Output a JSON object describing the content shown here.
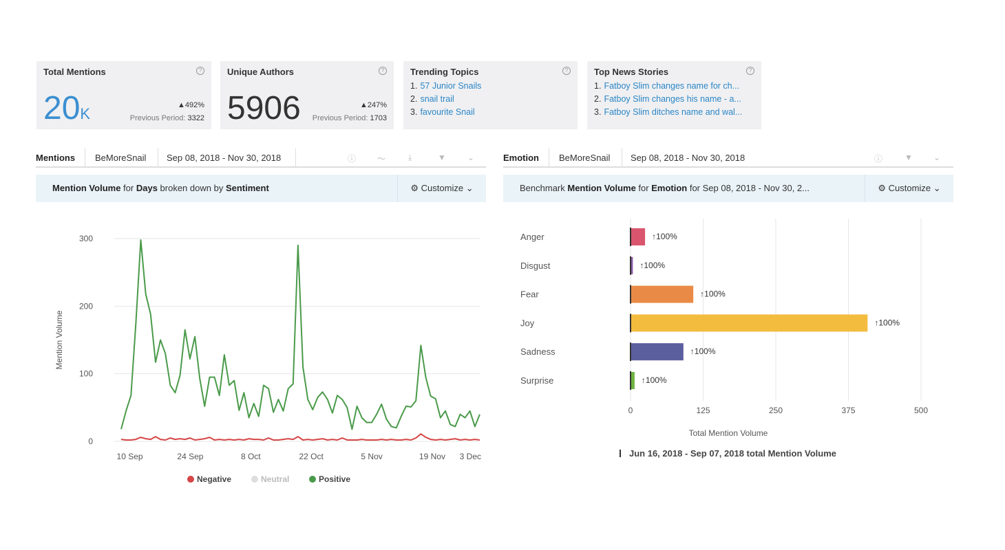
{
  "cards": {
    "total_mentions": {
      "title": "Total Mentions",
      "value": "20",
      "unit": "K",
      "delta": "492%",
      "prev_label": "Previous Period:",
      "prev_value": "3322"
    },
    "unique_authors": {
      "title": "Unique Authors",
      "value": "5906",
      "delta": "247%",
      "prev_label": "Previous Period:",
      "prev_value": "1703"
    },
    "trending_topics": {
      "title": "Trending Topics",
      "items": [
        "57 Junior Snails",
        "snail trail",
        "favourite Snail"
      ]
    },
    "top_news": {
      "title": "Top News Stories",
      "items": [
        "Fatboy Slim changes name for ch...",
        "Fatboy Slim changes his name - a...",
        "Fatboy Slim ditches name and wal..."
      ]
    }
  },
  "left_panel": {
    "tabs": [
      "Mentions",
      "BeMoreSnail",
      "Sep 08, 2018 - Nov 30, 2018"
    ],
    "subtitle": {
      "p1": "Mention Volume",
      "p2": " for ",
      "p3": "Days",
      "p4": " broken down by ",
      "p5": "Sentiment"
    },
    "customize": "Customize"
  },
  "right_panel": {
    "tabs": [
      "Emotion",
      "BeMoreSnail",
      "Sep 08, 2018 - Nov 30, 2018"
    ],
    "subtitle": {
      "p1": "Benchmark ",
      "p2": "Mention Volume",
      "p3": " for ",
      "p4": "Emotion",
      "p5": " for Sep 08, 2018 - Nov 30, 2..."
    },
    "customize": "Customize",
    "footnote": "Jun 16, 2018 - Sep 07, 2018 total Mention Volume"
  },
  "chart_data": [
    {
      "type": "line",
      "ylabel": "Mention Volume",
      "ylim": [
        0,
        300
      ],
      "yticks": [
        0,
        100,
        200,
        300
      ],
      "xticks": [
        "10 Sep",
        "24 Sep",
        "8 Oct",
        "22 Oct",
        "5 Nov",
        "19 Nov",
        "3 Dec"
      ],
      "x_start": "2018-09-08",
      "x_end": "2018-11-30",
      "legend": [
        "Negative",
        "Neutral",
        "Positive"
      ],
      "series": [
        {
          "name": "Positive",
          "color": "#4a9a4a",
          "values": [
            18,
            45,
            68,
            175,
            298,
            218,
            188,
            117,
            150,
            130,
            83,
            72,
            98,
            165,
            122,
            155,
            93,
            52,
            95,
            95,
            68,
            128,
            83,
            90,
            46,
            72,
            35,
            56,
            37,
            83,
            78,
            43,
            62,
            45,
            78,
            85,
            290,
            110,
            62,
            47,
            65,
            73,
            62,
            42,
            68,
            62,
            50,
            18,
            52,
            35,
            28,
            28,
            40,
            55,
            33,
            22,
            20,
            37,
            52,
            51,
            60,
            142,
            95,
            67,
            63,
            35,
            45,
            25,
            22,
            40,
            35,
            45,
            22,
            40
          ]
        },
        {
          "name": "Negative",
          "color": "#d64545",
          "values": [
            3,
            2,
            2,
            3,
            6,
            4,
            3,
            7,
            3,
            2,
            5,
            3,
            4,
            3,
            5,
            2,
            3,
            4,
            6,
            2,
            3,
            2,
            3,
            2,
            3,
            2,
            4,
            3,
            3,
            2,
            5,
            2,
            2,
            3,
            4,
            3,
            7,
            2,
            3,
            2,
            3,
            4,
            2,
            3,
            2,
            5,
            2,
            2,
            2,
            3,
            2,
            2,
            2,
            3,
            2,
            3,
            2,
            2,
            3,
            2,
            5,
            11,
            6,
            3,
            2,
            3,
            2,
            3,
            4,
            2,
            3,
            2,
            3,
            2
          ]
        }
      ]
    },
    {
      "type": "bar",
      "orientation": "horizontal",
      "xlabel": "Total Mention Volume",
      "xlim": [
        0,
        500
      ],
      "xticks": [
        0,
        125,
        250,
        375,
        500
      ],
      "categories": [
        "Anger",
        "Disgust",
        "Fear",
        "Joy",
        "Sadness",
        "Surprise"
      ],
      "values": [
        25,
        4,
        108,
        408,
        91,
        7
      ],
      "colors": [
        "#d9566e",
        "#8a5ba6",
        "#e98b46",
        "#f3bc3e",
        "#5b5f9e",
        "#6db33f"
      ],
      "labels": [
        "100%",
        "100%",
        "100%",
        "100%",
        "100%",
        "100%"
      ]
    }
  ]
}
